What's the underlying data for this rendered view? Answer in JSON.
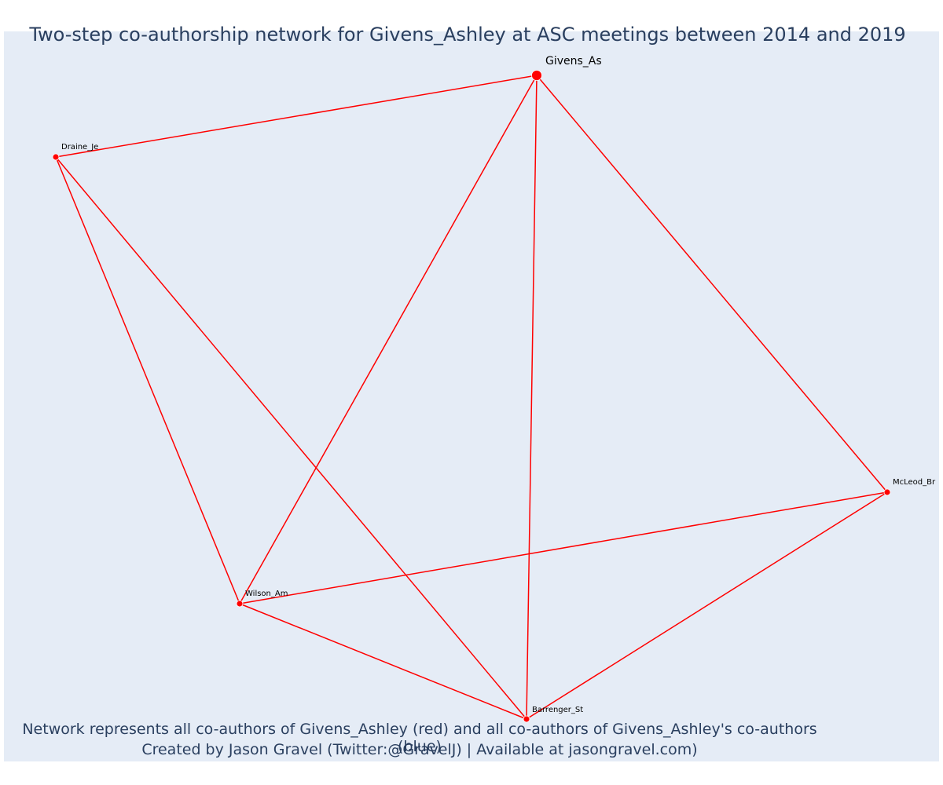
{
  "title": "Two-step co-authorship network for Givens_Ashley at ASC meetings between 2014 and 2019",
  "captions": {
    "line1": "Network represents all co-authors of Givens_Ashley (red) and all co-authors of Givens_Ashley's co-authors (blue)",
    "line2": "Created by Jason Gravel (Twitter:@GravelJ) | Available at jasongravel.com)"
  },
  "colors": {
    "background": "#e5ecf6",
    "edge": "#ff0000",
    "node": "#ff0000",
    "title_text": "#2a3f5f"
  },
  "network": {
    "nodes": [
      {
        "id": "Givens_As",
        "label": "Givens_As",
        "focal": true
      },
      {
        "id": "Draine_Je",
        "label": "Draine_Je",
        "focal": false
      },
      {
        "id": "McLeod_Br",
        "label": "McLeod_Br",
        "focal": false
      },
      {
        "id": "Wilson_Am",
        "label": "Wilson_Am",
        "focal": false
      },
      {
        "id": "Barrenger_St",
        "label": "Barrenger_St",
        "focal": false
      }
    ],
    "edges": [
      [
        "Givens_As",
        "Draine_Je"
      ],
      [
        "Givens_As",
        "Wilson_Am"
      ],
      [
        "Givens_As",
        "Barrenger_St"
      ],
      [
        "Givens_As",
        "McLeod_Br"
      ],
      [
        "Draine_Je",
        "Wilson_Am"
      ],
      [
        "Draine_Je",
        "Barrenger_St"
      ],
      [
        "Wilson_Am",
        "McLeod_Br"
      ],
      [
        "Wilson_Am",
        "Barrenger_St"
      ],
      [
        "Barrenger_St",
        "McLeod_Br"
      ]
    ]
  }
}
